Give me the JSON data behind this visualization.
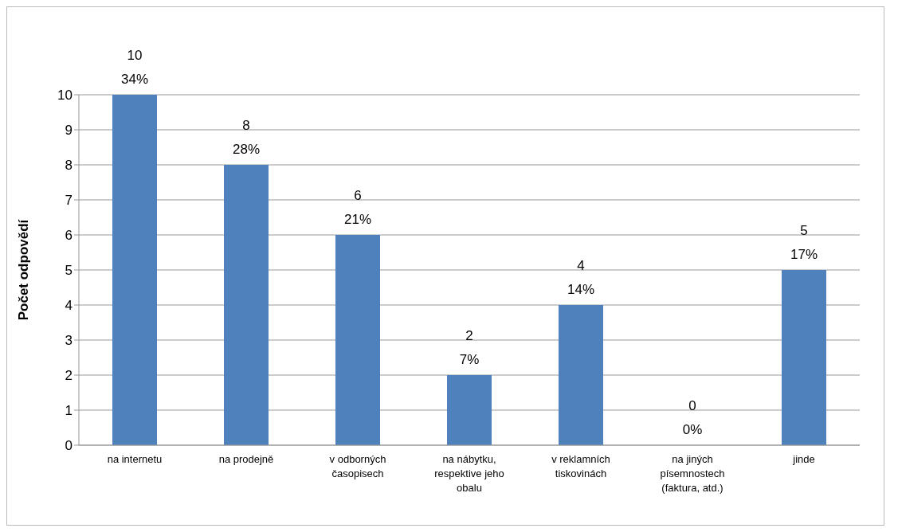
{
  "chart_data": {
    "type": "bar",
    "ylabel": "Počet odpovědí",
    "categories": [
      "na internetu",
      "na prodejně",
      "v odborných časopisech",
      "na nábytku, respektive jeho obalu",
      "v reklamních tiskovinách",
      "na jiných písemnostech (faktura, atd.)",
      "jinde"
    ],
    "values": [
      10,
      8,
      6,
      2,
      4,
      0,
      5
    ],
    "color": "#4f81bd",
    "value_labels": [
      "10\n34%",
      "8\n28%",
      "6\n21%",
      "2\n7%",
      "4\n14%",
      "0\n0%",
      "5\n17%"
    ],
    "ylim": [
      0,
      10
    ],
    "yticks": [
      0,
      1,
      2,
      3,
      4,
      5,
      6,
      7,
      8,
      9,
      10
    ],
    "grid": "y"
  }
}
